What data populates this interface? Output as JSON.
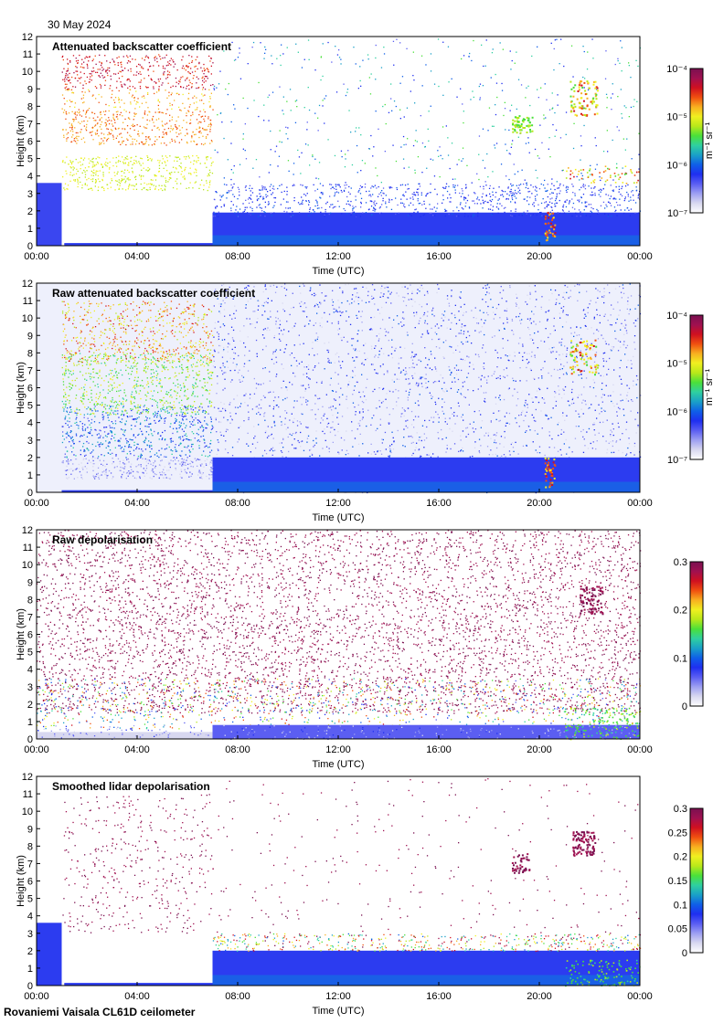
{
  "date": "30 May 2024",
  "footer": "Rovaniemi Vaisala CL61D ceilometer",
  "colormap": [
    "#ffffff",
    "#d8d8f0",
    "#9ea0f2",
    "#5b5ef2",
    "#1f2ff0",
    "#0f5fe8",
    "#1aa0c8",
    "#2fd0a0",
    "#4ae03a",
    "#b8e81a",
    "#f0f020",
    "#f8b020",
    "#f05010",
    "#d01020",
    "#a01050",
    "#7a1050"
  ],
  "chart_data": [
    {
      "type": "heatmap",
      "title": "Attenuated backscatter coefficient",
      "xlabel": "Time (UTC)",
      "ylabel": "Height (km)",
      "x_ticks": [
        "00:00",
        "04:00",
        "08:00",
        "12:00",
        "16:00",
        "20:00",
        "00:00"
      ],
      "y_ticks": [
        "0",
        "1",
        "2",
        "3",
        "4",
        "5",
        "6",
        "7",
        "8",
        "9",
        "10",
        "11",
        "12"
      ],
      "ylim": [
        0,
        12
      ],
      "colorbar": {
        "scale": "log",
        "range": [
          1e-07,
          0.0001
        ],
        "ticks": [
          "10⁻⁷",
          "10⁻⁶",
          "10⁻⁵",
          "10⁻⁴"
        ],
        "unit": "m⁻¹ sr⁻¹"
      }
    },
    {
      "type": "heatmap",
      "title": "Raw attenuated backscatter coefficient",
      "xlabel": "Time (UTC)",
      "ylabel": "Height (km)",
      "x_ticks": [
        "00:00",
        "04:00",
        "08:00",
        "12:00",
        "16:00",
        "20:00",
        "00:00"
      ],
      "y_ticks": [
        "0",
        "1",
        "2",
        "3",
        "4",
        "5",
        "6",
        "7",
        "8",
        "9",
        "10",
        "11",
        "12"
      ],
      "ylim": [
        0,
        12
      ],
      "colorbar": {
        "scale": "log",
        "range": [
          1e-07,
          0.0001
        ],
        "ticks": [
          "10⁻⁷",
          "10⁻⁶",
          "10⁻⁵",
          "10⁻⁴"
        ],
        "unit": "m⁻¹ sr⁻¹"
      }
    },
    {
      "type": "heatmap",
      "title": "Raw depolarisation",
      "xlabel": "Time (UTC)",
      "ylabel": "Height (km)",
      "x_ticks": [
        "00:00",
        "04:00",
        "08:00",
        "12:00",
        "16:00",
        "20:00",
        "00:00"
      ],
      "y_ticks": [
        "0",
        "1",
        "2",
        "3",
        "4",
        "5",
        "6",
        "7",
        "8",
        "9",
        "10",
        "11",
        "12"
      ],
      "ylim": [
        0,
        12
      ],
      "colorbar": {
        "scale": "linear",
        "range": [
          0,
          0.3
        ],
        "ticks": [
          "0",
          "0.1",
          "0.2",
          "0.3"
        ],
        "unit": ""
      }
    },
    {
      "type": "heatmap",
      "title": "Smoothed lidar depolarisation",
      "xlabel": "Time (UTC)",
      "ylabel": "Height (km)",
      "x_ticks": [
        "00:00",
        "04:00",
        "08:00",
        "12:00",
        "16:00",
        "20:00",
        "00:00"
      ],
      "y_ticks": [
        "0",
        "1",
        "2",
        "3",
        "4",
        "5",
        "6",
        "7",
        "8",
        "9",
        "10",
        "11",
        "12"
      ],
      "ylim": [
        0,
        12
      ],
      "colorbar": {
        "scale": "linear",
        "range": [
          0,
          0.3
        ],
        "ticks": [
          "0",
          "0.05",
          "0.1",
          "0.15",
          "0.2",
          "0.25",
          "0.3"
        ],
        "unit": ""
      }
    }
  ]
}
